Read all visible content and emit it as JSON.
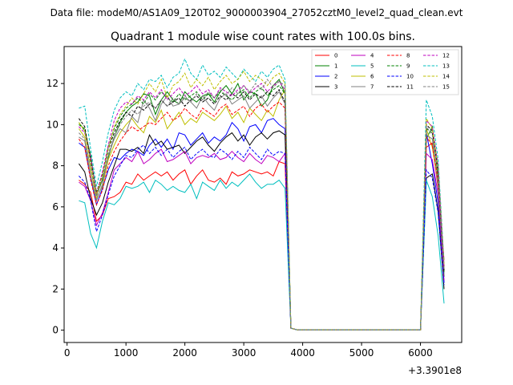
{
  "header": {
    "suptitle": "Data file: modeM0/AS1A09_120T02_9000003904_27052cztM0_level2_quad_clean.evt"
  },
  "chart_data": {
    "type": "line",
    "title": "Quadrant 1 module wise count rates with 100.0s bins.",
    "xlabel": "",
    "ylabel": "",
    "x_offset_label": "+3.3901e8",
    "xlim": [
      -50,
      6700
    ],
    "ylim": [
      -0.6,
      13.8
    ],
    "xticks": [
      0,
      1000,
      2000,
      3000,
      4000,
      5000,
      6000
    ],
    "xtick_labels": [
      "0",
      "1000",
      "2000",
      "3000",
      "4000",
      "5000",
      "6000"
    ],
    "yticks": [
      0,
      2,
      4,
      6,
      8,
      10,
      12
    ],
    "ytick_labels": [
      "0",
      "2",
      "4",
      "6",
      "8",
      "10",
      "12"
    ],
    "grid": false,
    "legend_position": "top-right",
    "legend_columns": 4,
    "x": [
      200,
      300,
      400,
      500,
      600,
      700,
      800,
      900,
      1000,
      1100,
      1200,
      1300,
      1400,
      1500,
      1600,
      1700,
      1800,
      1900,
      2000,
      2100,
      2200,
      2300,
      2400,
      2500,
      2600,
      2700,
      2800,
      2900,
      3000,
      3100,
      3200,
      3300,
      3400,
      3500,
      3600,
      3700,
      3800,
      3900,
      4000,
      4100,
      4200,
      4300,
      4400,
      4500,
      4600,
      4700,
      4800,
      4900,
      5000,
      5100,
      5200,
      5300,
      5400,
      5500,
      5600,
      5700,
      5800,
      5900,
      6000,
      6100,
      6200,
      6300,
      6400
    ],
    "series": [
      {
        "name": "0",
        "color": "#ff0000",
        "dash": false,
        "values": [
          7.3,
          7.1,
          6.7,
          5.3,
          5.6,
          6.4,
          6.5,
          6.7,
          7.2,
          7.1,
          7.6,
          7.3,
          7.5,
          7.7,
          7.5,
          7.7,
          7.3,
          7.6,
          7.8,
          7.1,
          7.5,
          7.8,
          7.3,
          7.2,
          7.4,
          7.1,
          7.7,
          7.5,
          7.6,
          7.8,
          7.7,
          7.6,
          7.7,
          7.5,
          8.2,
          8.1,
          0.1,
          0.02,
          0.02,
          0.02,
          0.02,
          0.02,
          0.02,
          0.02,
          0.02,
          0.02,
          0.02,
          0.02,
          0.02,
          0.02,
          0.02,
          0.02,
          0.02,
          0.02,
          0.02,
          0.02,
          0.02,
          0.02,
          0.02,
          8.9,
          9.1,
          6.9,
          3.4
        ]
      },
      {
        "name": "1",
        "color": "#008000",
        "dash": false,
        "values": [
          10.1,
          9.7,
          8.5,
          6.6,
          7.3,
          8.4,
          9.4,
          10.1,
          10.6,
          10.9,
          11.1,
          11.5,
          11.4,
          10.5,
          11.2,
          11.6,
          11.2,
          11.0,
          11.6,
          11.3,
          11.1,
          11.4,
          11.5,
          11.1,
          11.6,
          11.9,
          11.5,
          12.0,
          11.2,
          11.6,
          11.5,
          10.9,
          11.2,
          11.9,
          12.2,
          11.5,
          0.1,
          0.02,
          0.02,
          0.02,
          0.02,
          0.02,
          0.02,
          0.02,
          0.02,
          0.02,
          0.02,
          0.02,
          0.02,
          0.02,
          0.02,
          0.02,
          0.02,
          0.02,
          0.02,
          0.02,
          0.02,
          0.02,
          0.02,
          9.3,
          9.9,
          7.4,
          2.6
        ]
      },
      {
        "name": "2",
        "color": "#0000ff",
        "dash": false,
        "values": [
          9.1,
          8.9,
          7.4,
          6.1,
          6.9,
          7.8,
          8.4,
          8.3,
          8.6,
          8.8,
          8.7,
          8.5,
          9.0,
          9.3,
          8.9,
          9.3,
          8.8,
          9.6,
          9.5,
          9.0,
          9.3,
          9.6,
          9.1,
          9.4,
          9.2,
          9.5,
          10.1,
          9.8,
          9.2,
          9.9,
          10.0,
          9.6,
          10.2,
          10.3,
          10.0,
          9.8,
          0.1,
          0.02,
          0.02,
          0.02,
          0.02,
          0.02,
          0.02,
          0.02,
          0.02,
          0.02,
          0.02,
          0.02,
          0.02,
          0.02,
          0.02,
          0.02,
          0.02,
          0.02,
          0.02,
          0.02,
          0.02,
          0.02,
          0.02,
          9.6,
          8.1,
          6.2,
          2.3
        ]
      },
      {
        "name": "3",
        "color": "#000000",
        "dash": false,
        "values": [
          8.1,
          7.7,
          6.4,
          5.6,
          6.2,
          7.2,
          8.0,
          8.8,
          8.8,
          8.7,
          8.9,
          8.6,
          9.5,
          9.0,
          9.2,
          8.8,
          8.9,
          9.0,
          8.6,
          8.9,
          9.2,
          9.4,
          9.0,
          8.7,
          9.1,
          9.4,
          9.6,
          9.2,
          9.5,
          9.0,
          9.4,
          9.6,
          9.3,
          9.6,
          9.7,
          9.5,
          0.1,
          0.02,
          0.02,
          0.02,
          0.02,
          0.02,
          0.02,
          0.02,
          0.02,
          0.02,
          0.02,
          0.02,
          0.02,
          0.02,
          0.02,
          0.02,
          0.02,
          0.02,
          0.02,
          0.02,
          0.02,
          0.02,
          0.02,
          7.4,
          7.6,
          5.8,
          2.0
        ]
      },
      {
        "name": "4",
        "color": "#bf00bf",
        "dash": false,
        "values": [
          7.2,
          7.0,
          6.3,
          5.1,
          5.7,
          6.7,
          7.8,
          8.1,
          8.4,
          8.2,
          8.7,
          8.1,
          8.3,
          8.6,
          8.8,
          8.2,
          8.3,
          8.5,
          8.7,
          8.1,
          8.4,
          8.5,
          8.4,
          8.6,
          8.3,
          8.4,
          8.7,
          8.4,
          8.2,
          8.6,
          8.3,
          8.1,
          8.5,
          8.4,
          8.2,
          8.6,
          0.1,
          0.02,
          0.02,
          0.02,
          0.02,
          0.02,
          0.02,
          0.02,
          0.02,
          0.02,
          0.02,
          0.02,
          0.02,
          0.02,
          0.02,
          0.02,
          0.02,
          0.02,
          0.02,
          0.02,
          0.02,
          0.02,
          0.02,
          8.6,
          8.3,
          6.6,
          2.4
        ]
      },
      {
        "name": "5",
        "color": "#00bfbf",
        "dash": false,
        "values": [
          6.3,
          6.2,
          4.7,
          4.0,
          5.3,
          6.2,
          6.1,
          6.4,
          7.0,
          6.9,
          7.0,
          7.2,
          6.7,
          7.3,
          7.1,
          6.8,
          7.0,
          6.8,
          6.7,
          7.1,
          6.4,
          7.2,
          7.0,
          6.8,
          7.3,
          6.9,
          7.2,
          7.0,
          7.3,
          7.6,
          7.2,
          6.9,
          7.1,
          7.1,
          7.3,
          6.9,
          0.1,
          0.02,
          0.02,
          0.02,
          0.02,
          0.02,
          0.02,
          0.02,
          0.02,
          0.02,
          0.02,
          0.02,
          0.02,
          0.02,
          0.02,
          0.02,
          0.02,
          0.02,
          0.02,
          0.02,
          0.02,
          0.02,
          0.02,
          7.3,
          6.5,
          4.6,
          1.3
        ]
      },
      {
        "name": "6",
        "color": "#bfbf00",
        "dash": false,
        "values": [
          9.8,
          9.4,
          7.8,
          6.4,
          7.0,
          8.3,
          9.0,
          9.6,
          10.0,
          10.3,
          9.9,
          9.6,
          10.4,
          10.1,
          10.7,
          9.8,
          10.2,
          10.6,
          10.0,
          10.3,
          10.1,
          10.6,
          10.4,
          10.2,
          10.5,
          10.9,
          10.3,
          10.6,
          10.1,
          10.8,
          10.5,
          10.2,
          10.7,
          10.4,
          11.2,
          11.7,
          0.1,
          0.02,
          0.02,
          0.02,
          0.02,
          0.02,
          0.02,
          0.02,
          0.02,
          0.02,
          0.02,
          0.02,
          0.02,
          0.02,
          0.02,
          0.02,
          0.02,
          0.02,
          0.02,
          0.02,
          0.02,
          0.02,
          0.02,
          9.8,
          8.9,
          7.1,
          2.9
        ]
      },
      {
        "name": "7",
        "color": "#808080",
        "dash": false,
        "values": [
          9.4,
          9.2,
          7.5,
          6.3,
          7.1,
          8.5,
          9.3,
          9.8,
          9.6,
          10.4,
          10.1,
          11.2,
          10.8,
          10.2,
          11.0,
          11.4,
          10.9,
          11.0,
          11.3,
          11.1,
          10.8,
          11.4,
          11.0,
          10.7,
          11.3,
          11.5,
          11.0,
          11.2,
          11.4,
          10.8,
          11.1,
          11.4,
          10.9,
          11.3,
          11.6,
          11.0,
          0.1,
          0.02,
          0.02,
          0.02,
          0.02,
          0.02,
          0.02,
          0.02,
          0.02,
          0.02,
          0.02,
          0.02,
          0.02,
          0.02,
          0.02,
          0.02,
          0.02,
          0.02,
          0.02,
          0.02,
          0.02,
          0.02,
          0.02,
          9.5,
          9.3,
          7.0,
          2.7
        ]
      },
      {
        "name": "8",
        "color": "#ff0000",
        "dash": true,
        "values": [
          9.3,
          8.9,
          7.3,
          6.1,
          6.8,
          8.0,
          8.7,
          9.2,
          9.6,
          9.9,
          9.7,
          9.9,
          10.1,
          10.0,
          10.3,
          10.6,
          10.2,
          10.4,
          10.8,
          10.5,
          10.3,
          10.8,
          10.6,
          10.4,
          10.8,
          11.0,
          10.5,
          10.7,
          10.9,
          10.4,
          10.8,
          11.0,
          10.6,
          10.9,
          11.1,
          10.8,
          0.1,
          0.02,
          0.02,
          0.02,
          0.02,
          0.02,
          0.02,
          0.02,
          0.02,
          0.02,
          0.02,
          0.02,
          0.02,
          0.02,
          0.02,
          0.02,
          0.02,
          0.02,
          0.02,
          0.02,
          0.02,
          0.02,
          0.02,
          9.4,
          9.0,
          7.3,
          3.1
        ]
      },
      {
        "name": "9",
        "color": "#008000",
        "dash": true,
        "values": [
          10.0,
          9.8,
          8.2,
          6.5,
          7.4,
          8.9,
          9.8,
          10.4,
          10.8,
          11.0,
          11.3,
          11.0,
          11.5,
          11.2,
          11.6,
          11.3,
          11.1,
          11.5,
          11.2,
          11.4,
          11.6,
          11.2,
          11.5,
          11.3,
          11.6,
          11.4,
          11.2,
          11.5,
          11.7,
          11.3,
          11.6,
          11.8,
          11.4,
          11.7,
          11.9,
          11.5,
          0.1,
          0.02,
          0.02,
          0.02,
          0.02,
          0.02,
          0.02,
          0.02,
          0.02,
          0.02,
          0.02,
          0.02,
          0.02,
          0.02,
          0.02,
          0.02,
          0.02,
          0.02,
          0.02,
          0.02,
          0.02,
          0.02,
          0.02,
          9.8,
          9.6,
          7.6,
          2.8
        ]
      },
      {
        "name": "10",
        "color": "#0000ff",
        "dash": true,
        "values": [
          7.5,
          7.2,
          6.3,
          4.8,
          5.6,
          6.6,
          7.5,
          8.0,
          8.5,
          8.4,
          8.8,
          9.0,
          8.6,
          8.9,
          8.5,
          8.8,
          8.4,
          8.7,
          8.9,
          8.3,
          8.6,
          8.8,
          8.5,
          8.4,
          8.8,
          8.6,
          8.3,
          8.7,
          8.4,
          8.9,
          8.6,
          8.3,
          8.8,
          8.5,
          8.7,
          8.6,
          0.1,
          0.02,
          0.02,
          0.02,
          0.02,
          0.02,
          0.02,
          0.02,
          0.02,
          0.02,
          0.02,
          0.02,
          0.02,
          0.02,
          0.02,
          0.02,
          0.02,
          0.02,
          0.02,
          0.02,
          0.02,
          0.02,
          0.02,
          7.8,
          7.4,
          5.7,
          2.2
        ]
      },
      {
        "name": "11",
        "color": "#000000",
        "dash": true,
        "values": [
          10.3,
          9.9,
          8.3,
          6.7,
          7.6,
          8.8,
          9.6,
          10.2,
          10.6,
          10.4,
          10.9,
          10.7,
          11.0,
          10.8,
          11.2,
          10.9,
          11.1,
          11.3,
          10.9,
          11.2,
          11.4,
          11.1,
          11.3,
          11.0,
          11.4,
          11.2,
          11.5,
          11.3,
          11.6,
          11.2,
          11.5,
          11.3,
          11.6,
          11.4,
          11.7,
          11.1,
          0.1,
          0.02,
          0.02,
          0.02,
          0.02,
          0.02,
          0.02,
          0.02,
          0.02,
          0.02,
          0.02,
          0.02,
          0.02,
          0.02,
          0.02,
          0.02,
          0.02,
          0.02,
          0.02,
          0.02,
          0.02,
          0.02,
          0.02,
          10.0,
          9.7,
          7.8,
          2.9
        ]
      },
      {
        "name": "12",
        "color": "#bf00bf",
        "dash": true,
        "values": [
          9.9,
          9.6,
          8.4,
          6.6,
          7.7,
          9.0,
          10.2,
          10.8,
          11.1,
          11.0,
          11.4,
          11.2,
          11.6,
          11.3,
          11.7,
          11.2,
          11.5,
          11.8,
          11.4,
          11.6,
          11.9,
          11.5,
          11.7,
          11.3,
          11.8,
          11.6,
          11.4,
          11.7,
          11.9,
          11.5,
          11.8,
          12.0,
          11.6,
          11.9,
          12.1,
          11.7,
          0.1,
          0.02,
          0.02,
          0.02,
          0.02,
          0.02,
          0.02,
          0.02,
          0.02,
          0.02,
          0.02,
          0.02,
          0.02,
          0.02,
          0.02,
          0.02,
          0.02,
          0.02,
          0.02,
          0.02,
          0.02,
          0.02,
          0.02,
          10.2,
          9.9,
          8.0,
          3.0
        ]
      },
      {
        "name": "13",
        "color": "#00bfbf",
        "dash": true,
        "values": [
          10.8,
          10.9,
          8.8,
          7.0,
          8.2,
          9.6,
          10.7,
          11.3,
          11.6,
          11.4,
          12.0,
          11.7,
          12.2,
          12.1,
          12.4,
          11.8,
          12.3,
          12.5,
          13.2,
          12.5,
          12.2,
          12.9,
          12.4,
          12.6,
          12.3,
          12.8,
          12.5,
          12.2,
          12.7,
          12.4,
          12.1,
          12.6,
          12.3,
          12.7,
          12.9,
          12.2,
          0.1,
          0.02,
          0.02,
          0.02,
          0.02,
          0.02,
          0.02,
          0.02,
          0.02,
          0.02,
          0.02,
          0.02,
          0.02,
          0.02,
          0.02,
          0.02,
          0.02,
          0.02,
          0.02,
          0.02,
          0.02,
          0.02,
          0.02,
          11.2,
          10.4,
          8.3,
          3.3
        ]
      },
      {
        "name": "14",
        "color": "#bfbf00",
        "dash": true,
        "values": [
          10.1,
          9.7,
          8.1,
          6.6,
          7.5,
          8.8,
          9.9,
          10.5,
          10.9,
          11.3,
          11.0,
          11.5,
          12.0,
          11.6,
          12.2,
          11.3,
          11.9,
          12.1,
          12.5,
          11.8,
          12.2,
          11.9,
          12.3,
          11.7,
          12.1,
          12.4,
          12.0,
          12.2,
          12.6,
          12.1,
          12.4,
          12.2,
          11.9,
          12.3,
          12.5,
          12.0,
          0.1,
          0.02,
          0.02,
          0.02,
          0.02,
          0.02,
          0.02,
          0.02,
          0.02,
          0.02,
          0.02,
          0.02,
          0.02,
          0.02,
          0.02,
          0.02,
          0.02,
          0.02,
          0.02,
          0.02,
          0.02,
          0.02,
          0.02,
          10.3,
          9.8,
          7.9,
          3.2
        ]
      },
      {
        "name": "15",
        "color": "#808080",
        "dash": true,
        "values": [
          9.6,
          9.3,
          7.9,
          6.5,
          7.3,
          8.6,
          9.4,
          10.0,
          10.4,
          10.7,
          10.5,
          10.9,
          11.1,
          10.8,
          11.2,
          10.9,
          11.3,
          11.0,
          11.4,
          11.1,
          11.5,
          11.2,
          11.6,
          11.3,
          11.7,
          11.4,
          11.8,
          11.5,
          11.9,
          11.6,
          12.0,
          11.7,
          12.2,
          11.8,
          12.1,
          11.9,
          0.1,
          0.02,
          0.02,
          0.02,
          0.02,
          0.02,
          0.02,
          0.02,
          0.02,
          0.02,
          0.02,
          0.02,
          0.02,
          0.02,
          0.02,
          0.02,
          0.02,
          0.02,
          0.02,
          0.02,
          0.02,
          0.02,
          0.02,
          9.9,
          9.5,
          7.7,
          3.0
        ]
      }
    ]
  }
}
